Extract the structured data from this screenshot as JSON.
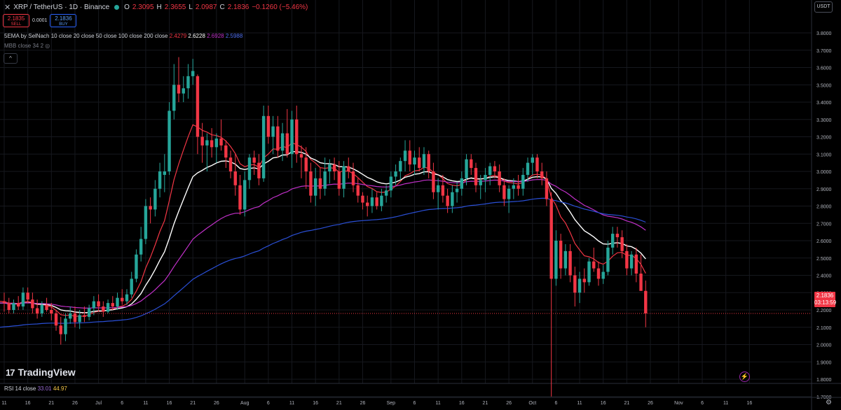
{
  "header": {
    "symbol": "XRP / TetherUS · 1D · Binance",
    "open_key": "O",
    "open": "2.3095",
    "high_key": "H",
    "high": "2.3655",
    "low_key": "L",
    "low": "2.0987",
    "close_key": "C",
    "close": "2.1836",
    "change": "−0.1260 (−5.46%)"
  },
  "trade": {
    "sell_price": "2.1835",
    "sell_label": "SELL",
    "spread": "0.0001",
    "buy_price": "2.1836",
    "buy_label": "BUY"
  },
  "indicators": {
    "ema_label": "5EMA by SelNach 10 close 20 close 50 close 100 close 200 close",
    "ema_values": [
      "2.4279",
      "2.6228",
      "2.6928",
      "2.5988"
    ],
    "mbb_label": "MBB close 34 2",
    "collapse": "^"
  },
  "quote_currency": "USDT",
  "brand": "TradingView",
  "rsi": {
    "label": "RSI 14 close",
    "v1": "33.01",
    "v2": "44.97"
  },
  "price_tag": {
    "price": "2.1836",
    "countdown": "03:13:59"
  },
  "colors": {
    "up": "#26a69a",
    "down": "#f23645",
    "ema10": "#f23645",
    "ema20": "#ffffff",
    "ema50": "#c030c8",
    "ema100": "#2a4fd6",
    "bg": "#000000",
    "axis_text": "#b2b5be"
  },
  "chart_data": {
    "type": "candlestick",
    "title": "XRP / TetherUS · 1D · Binance",
    "ylim": [
      1.7,
      3.8
    ],
    "y_ticks": [
      "3.8000",
      "3.7000",
      "3.6000",
      "3.5000",
      "3.4000",
      "3.3000",
      "3.2000",
      "3.1000",
      "3.0000",
      "2.9000",
      "2.8000",
      "2.7000",
      "2.6000",
      "2.5000",
      "2.4000",
      "2.3000",
      "2.2000",
      "2.1000",
      "2.0000",
      "1.9000",
      "1.8000",
      "1.7000"
    ],
    "x_ticks": [
      "11",
      "16",
      "21",
      "26",
      "Jul",
      "6",
      "11",
      "16",
      "21",
      "26",
      "Aug",
      "6",
      "11",
      "16",
      "21",
      "26",
      "Sep",
      "6",
      "11",
      "16",
      "21",
      "26",
      "Oct",
      "6",
      "11",
      "16",
      "21",
      "26",
      "Nov",
      "6",
      "11",
      "16"
    ],
    "x_tick_index": [
      0,
      5,
      10,
      15,
      20,
      25,
      30,
      35,
      40,
      45,
      51,
      56,
      61,
      66,
      71,
      76,
      82,
      87,
      92,
      97,
      102,
      107,
      112,
      117,
      122,
      127,
      132,
      137,
      143,
      148,
      153,
      158
    ],
    "candles": [
      [
        2.25,
        2.3,
        2.19,
        2.24
      ],
      [
        2.24,
        2.27,
        2.18,
        2.2
      ],
      [
        2.2,
        2.26,
        2.18,
        2.24
      ],
      [
        2.24,
        2.28,
        2.2,
        2.22
      ],
      [
        2.22,
        2.33,
        2.2,
        2.3
      ],
      [
        2.3,
        2.33,
        2.24,
        2.26
      ],
      [
        2.26,
        2.3,
        2.18,
        2.21
      ],
      [
        2.21,
        2.26,
        2.15,
        2.18
      ],
      [
        2.18,
        2.25,
        2.16,
        2.23
      ],
      [
        2.23,
        2.27,
        2.19,
        2.2
      ],
      [
        2.2,
        2.24,
        2.14,
        2.18
      ],
      [
        2.18,
        2.2,
        2.08,
        2.11
      ],
      [
        2.11,
        2.16,
        2.0,
        2.06
      ],
      [
        2.06,
        2.18,
        2.02,
        2.15
      ],
      [
        2.15,
        2.22,
        2.12,
        2.18
      ],
      [
        2.18,
        2.22,
        2.1,
        2.13
      ],
      [
        2.13,
        2.2,
        2.09,
        2.17
      ],
      [
        2.17,
        2.22,
        2.13,
        2.16
      ],
      [
        2.16,
        2.23,
        2.14,
        2.21
      ],
      [
        2.21,
        2.28,
        2.17,
        2.25
      ],
      [
        2.25,
        2.29,
        2.19,
        2.22
      ],
      [
        2.22,
        2.25,
        2.16,
        2.19
      ],
      [
        2.19,
        2.26,
        2.18,
        2.24
      ],
      [
        2.24,
        2.28,
        2.2,
        2.22
      ],
      [
        2.22,
        2.3,
        2.2,
        2.27
      ],
      [
        2.27,
        2.32,
        2.23,
        2.25
      ],
      [
        2.25,
        2.32,
        2.23,
        2.29
      ],
      [
        2.29,
        2.42,
        2.27,
        2.38
      ],
      [
        2.38,
        2.55,
        2.36,
        2.52
      ],
      [
        2.52,
        2.68,
        2.48,
        2.61
      ],
      [
        2.61,
        2.84,
        2.58,
        2.8
      ],
      [
        2.8,
        2.85,
        2.7,
        2.78
      ],
      [
        2.78,
        2.95,
        2.74,
        2.9
      ],
      [
        2.9,
        3.05,
        2.85,
        3.0
      ],
      [
        2.98,
        3.1,
        2.88,
        3.0
      ],
      [
        3.0,
        3.4,
        2.98,
        3.35
      ],
      [
        3.35,
        3.62,
        3.3,
        3.5
      ],
      [
        3.5,
        3.66,
        3.4,
        3.45
      ],
      [
        3.45,
        3.55,
        3.4,
        3.48
      ],
      [
        3.48,
        3.62,
        3.42,
        3.55
      ],
      [
        3.55,
        3.65,
        3.5,
        3.58
      ],
      [
        3.55,
        3.56,
        3.1,
        3.2
      ],
      [
        3.2,
        3.28,
        3.05,
        3.15
      ],
      [
        3.15,
        3.22,
        3.0,
        3.18
      ],
      [
        3.18,
        3.25,
        3.08,
        3.14
      ],
      [
        3.14,
        3.22,
        3.05,
        3.19
      ],
      [
        3.19,
        3.3,
        3.12,
        3.15
      ],
      [
        3.15,
        3.18,
        3.02,
        3.08
      ],
      [
        3.08,
        3.12,
        2.96,
        3.0
      ],
      [
        3.0,
        3.1,
        2.86,
        2.92
      ],
      [
        2.92,
        2.98,
        2.75,
        2.78
      ],
      [
        2.78,
        3.0,
        2.74,
        2.95
      ],
      [
        2.95,
        3.1,
        2.9,
        3.08
      ],
      [
        3.08,
        3.12,
        2.98,
        3.05
      ],
      [
        3.05,
        3.1,
        2.92,
        2.96
      ],
      [
        2.96,
        3.38,
        2.94,
        3.32
      ],
      [
        3.32,
        3.38,
        3.16,
        3.2
      ],
      [
        3.2,
        3.32,
        3.1,
        3.26
      ],
      [
        3.26,
        3.32,
        3.08,
        3.12
      ],
      [
        3.12,
        3.28,
        3.06,
        3.22
      ],
      [
        3.22,
        3.36,
        3.08,
        3.1
      ],
      [
        3.1,
        3.35,
        3.02,
        3.3
      ],
      [
        3.3,
        3.38,
        3.05,
        3.1
      ],
      [
        3.1,
        3.15,
        2.96,
        3.08
      ],
      [
        3.08,
        3.14,
        2.9,
        3.0
      ],
      [
        3.0,
        3.05,
        2.82,
        2.86
      ],
      [
        2.86,
        3.02,
        2.8,
        2.96
      ],
      [
        2.96,
        3.02,
        2.84,
        2.9
      ],
      [
        2.9,
        3.08,
        2.86,
        3.0
      ],
      [
        3.0,
        3.07,
        2.93,
        3.04
      ],
      [
        3.04,
        3.08,
        2.95,
        3.0
      ],
      [
        3.0,
        3.06,
        2.86,
        2.9
      ],
      [
        2.9,
        3.06,
        2.85,
        3.03
      ],
      [
        3.03,
        3.08,
        2.96,
        3.0
      ],
      [
        3.0,
        3.05,
        2.88,
        2.92
      ],
      [
        2.92,
        2.96,
        2.82,
        2.86
      ],
      [
        2.86,
        2.88,
        2.78,
        2.82
      ],
      [
        2.82,
        2.86,
        2.74,
        2.8
      ],
      [
        2.8,
        2.9,
        2.76,
        2.85
      ],
      [
        2.85,
        2.88,
        2.78,
        2.8
      ],
      [
        2.8,
        2.9,
        2.77,
        2.86
      ],
      [
        2.86,
        2.92,
        2.82,
        2.89
      ],
      [
        2.89,
        3.0,
        2.85,
        2.97
      ],
      [
        2.97,
        3.04,
        2.92,
        3.0
      ],
      [
        3.0,
        3.08,
        2.95,
        3.06
      ],
      [
        3.06,
        3.18,
        3.0,
        3.12
      ],
      [
        3.12,
        3.18,
        3.0,
        3.04
      ],
      [
        3.04,
        3.12,
        2.98,
        3.08
      ],
      [
        3.08,
        3.14,
        3.0,
        3.02
      ],
      [
        3.02,
        3.14,
        2.98,
        3.1
      ],
      [
        3.1,
        3.12,
        2.96,
        3.0
      ],
      [
        3.0,
        3.05,
        2.84,
        2.88
      ],
      [
        2.88,
        2.96,
        2.78,
        2.92
      ],
      [
        2.92,
        2.98,
        2.82,
        2.86
      ],
      [
        2.86,
        2.9,
        2.76,
        2.8
      ],
      [
        2.8,
        2.92,
        2.76,
        2.88
      ],
      [
        2.88,
        2.94,
        2.82,
        2.9
      ],
      [
        2.9,
        3.0,
        2.86,
        2.96
      ],
      [
        2.96,
        3.1,
        2.92,
        3.07
      ],
      [
        3.07,
        3.1,
        2.98,
        3.02
      ],
      [
        3.02,
        3.05,
        2.88,
        2.92
      ],
      [
        2.92,
        2.98,
        2.84,
        2.95
      ],
      [
        2.95,
        3.02,
        2.88,
        2.98
      ],
      [
        2.98,
        3.05,
        2.92,
        3.03
      ],
      [
        3.03,
        3.06,
        2.96,
        3.0
      ],
      [
        3.0,
        3.04,
        2.88,
        2.92
      ],
      [
        2.92,
        2.96,
        2.8,
        2.84
      ],
      [
        2.84,
        2.92,
        2.76,
        2.9
      ],
      [
        2.9,
        2.96,
        2.84,
        2.92
      ],
      [
        2.92,
        2.98,
        2.86,
        2.9
      ],
      [
        2.9,
        3.02,
        2.86,
        2.98
      ],
      [
        2.98,
        3.08,
        2.94,
        3.05
      ],
      [
        3.05,
        3.1,
        2.98,
        3.08
      ],
      [
        3.08,
        3.1,
        2.96,
        3.0
      ],
      [
        3.0,
        3.05,
        2.92,
        2.96
      ],
      [
        2.96,
        3.0,
        2.8,
        2.84
      ],
      [
        2.84,
        2.88,
        1.7,
        2.38
      ],
      [
        2.38,
        2.66,
        2.34,
        2.6
      ],
      [
        2.6,
        2.64,
        2.38,
        2.44
      ],
      [
        2.44,
        2.58,
        2.4,
        2.54
      ],
      [
        2.54,
        2.58,
        2.36,
        2.4
      ],
      [
        2.4,
        2.45,
        2.22,
        2.3
      ],
      [
        2.3,
        2.42,
        2.24,
        2.38
      ],
      [
        2.38,
        2.44,
        2.3,
        2.36
      ],
      [
        2.36,
        2.5,
        2.34,
        2.48
      ],
      [
        2.48,
        2.56,
        2.42,
        2.44
      ],
      [
        2.44,
        2.48,
        2.34,
        2.38
      ],
      [
        2.38,
        2.46,
        2.35,
        2.42
      ],
      [
        2.42,
        2.6,
        2.4,
        2.56
      ],
      [
        2.56,
        2.68,
        2.52,
        2.64
      ],
      [
        2.64,
        2.68,
        2.56,
        2.62
      ],
      [
        2.62,
        2.66,
        2.5,
        2.54
      ],
      [
        2.54,
        2.58,
        2.4,
        2.44
      ],
      [
        2.44,
        2.54,
        2.4,
        2.52
      ],
      [
        2.52,
        2.56,
        2.36,
        2.41
      ],
      [
        2.41,
        2.52,
        2.32,
        2.31
      ],
      [
        2.31,
        2.37,
        2.1,
        2.18
      ]
    ],
    "series": [
      {
        "name": "EMA 10",
        "last": "2.4279"
      },
      {
        "name": "EMA 20",
        "last": "2.6228"
      },
      {
        "name": "EMA 50",
        "last": "2.6928"
      },
      {
        "name": "EMA 100",
        "last": "2.5988"
      }
    ]
  }
}
